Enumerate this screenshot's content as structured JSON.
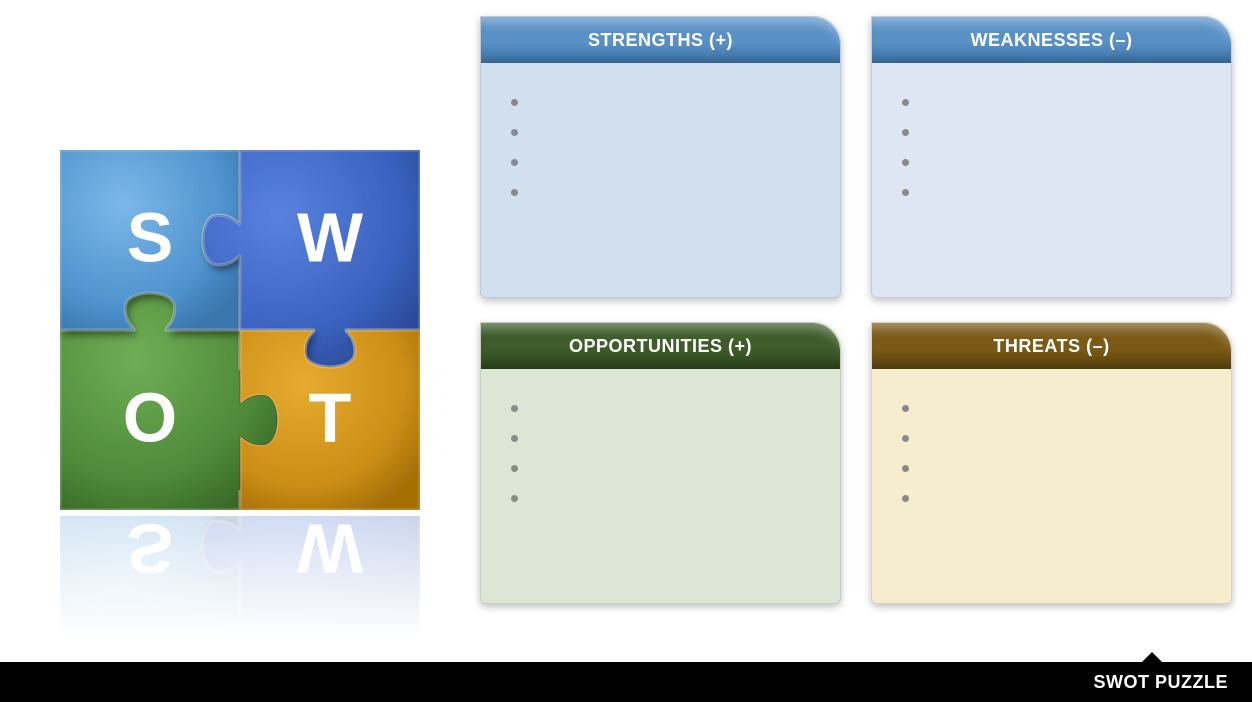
{
  "footer": {
    "label": "SWOT PUZZLE"
  },
  "puzzle": {
    "size": 360,
    "pieces": [
      {
        "key": "s",
        "letter": "S",
        "fill": "#4f93ce",
        "grad_light": "#7cb7e8",
        "grad_dark": "#3a76ac",
        "row": 0,
        "col": 0
      },
      {
        "key": "w",
        "letter": "W",
        "fill": "#3a62bf",
        "grad_light": "#5a82df",
        "grad_dark": "#2b4a97",
        "row": 0,
        "col": 1
      },
      {
        "key": "o",
        "letter": "O",
        "fill": "#4f8a3a",
        "grad_light": "#6fae55",
        "grad_dark": "#3a6a28",
        "row": 1,
        "col": 0
      },
      {
        "key": "t",
        "letter": "T",
        "fill": "#cc8e16",
        "grad_light": "#e6ab30",
        "grad_dark": "#a56f06",
        "row": 1,
        "col": 1
      }
    ],
    "shadow_color": "#000000",
    "shadow_opacity": 0.4
  },
  "cards": [
    {
      "key": "strengths",
      "title": "STRENGTHS (+)",
      "header_bg": "#5991c6",
      "header_dark": "#3f76aa",
      "body_bg": "#d2dfee",
      "bullets": [
        "",
        "",
        "",
        ""
      ]
    },
    {
      "key": "weaknesses",
      "title": "WEAKNESSES (–)",
      "header_bg": "#5991c6",
      "header_dark": "#3f76aa",
      "body_bg": "#dde6f2",
      "bullets": [
        "",
        "",
        "",
        ""
      ]
    },
    {
      "key": "opportunities",
      "title": "OPPORTUNITIES (+)",
      "header_bg": "#3e5d2a",
      "header_dark": "#2d451d",
      "body_bg": "#dde6d4",
      "bullets": [
        "",
        "",
        "",
        ""
      ]
    },
    {
      "key": "threats",
      "title": "THREATS (–)",
      "header_bg": "#7a5a16",
      "header_dark": "#5d440e",
      "body_bg": "#f5edcd",
      "bullets": [
        "",
        "",
        "",
        ""
      ]
    }
  ],
  "typography": {
    "card_title_fontsize": 18,
    "puzzle_letter_fontsize": 70,
    "footer_fontsize": 18
  },
  "colors": {
    "page_bg": "#ffffff",
    "footer_bg": "#000000",
    "footer_text": "#ffffff",
    "bullet": "#8a8a8a"
  }
}
